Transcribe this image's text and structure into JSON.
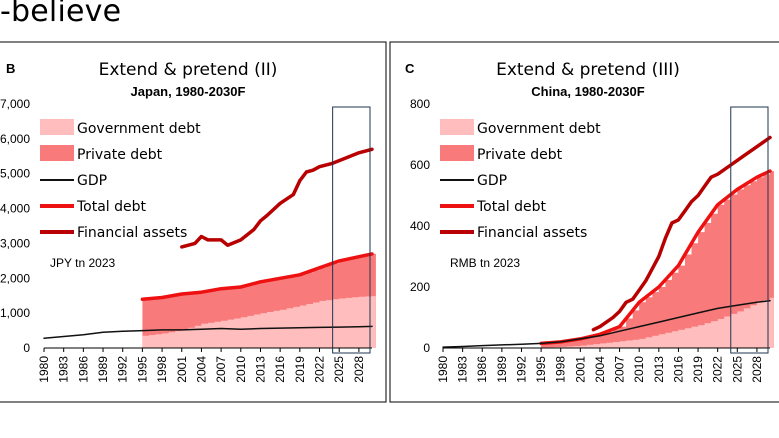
{
  "header": {
    "title": "-believe"
  },
  "chart_data": [
    {
      "type": "area",
      "panel": "B",
      "title": "Extend & pretend (II)",
      "subtitle": "Japan, 1980-2030F",
      "unit": "JPY tn 2023",
      "ylim": [
        0,
        7000
      ],
      "yticks": [
        "0",
        "1,000",
        "2,000",
        "3,000",
        "4,000",
        "5,000",
        "6,000",
        "7,000"
      ],
      "ytick_values": [
        0,
        1000,
        2000,
        3000,
        4000,
        5000,
        6000,
        7000
      ],
      "xticks": [
        "1980",
        "1983",
        "1986",
        "1989",
        "1992",
        "1995",
        "1998",
        "2001",
        "2004",
        "2007",
        "2010",
        "2013",
        "2016",
        "2019",
        "2022",
        "2025",
        "2028"
      ],
      "xlim": [
        1980,
        2030
      ],
      "forecast_box": [
        2024,
        2030
      ],
      "legend": [
        "Government debt",
        "Private debt",
        "GDP",
        "Total debt",
        "Financial assets"
      ],
      "series": [
        {
          "name": "Government debt",
          "years": [
            1995,
            1998,
            2001,
            2004,
            2007,
            2010,
            2013,
            2016,
            2019,
            2022,
            2025,
            2028,
            2030
          ],
          "values": [
            350,
            420,
            520,
            700,
            780,
            880,
            1000,
            1100,
            1220,
            1350,
            1420,
            1470,
            1490
          ]
        },
        {
          "name": "Total debt",
          "years": [
            1995,
            1998,
            2001,
            2004,
            2007,
            2010,
            2013,
            2016,
            2019,
            2022,
            2025,
            2028,
            2030
          ],
          "values": [
            1400,
            1450,
            1550,
            1600,
            1700,
            1750,
            1900,
            2000,
            2100,
            2300,
            2500,
            2620,
            2700
          ]
        },
        {
          "name": "GDP",
          "years": [
            1980,
            1983,
            1986,
            1989,
            1992,
            1995,
            1998,
            2001,
            2004,
            2007,
            2010,
            2013,
            2016,
            2019,
            2022,
            2025,
            2028,
            2030
          ],
          "values": [
            280,
            330,
            380,
            450,
            480,
            500,
            520,
            520,
            540,
            560,
            540,
            560,
            570,
            580,
            590,
            600,
            610,
            620
          ]
        },
        {
          "name": "Financial assets",
          "years": [
            2001,
            2003,
            2004,
            2005,
            2007,
            2008,
            2010,
            2012,
            2013,
            2014,
            2016,
            2018,
            2019,
            2020,
            2021,
            2022,
            2024,
            2026,
            2028,
            2030
          ],
          "values": [
            2900,
            3000,
            3200,
            3100,
            3100,
            2950,
            3100,
            3400,
            3650,
            3800,
            4150,
            4400,
            4800,
            5050,
            5100,
            5200,
            5300,
            5450,
            5600,
            5700
          ]
        }
      ]
    },
    {
      "type": "area",
      "panel": "C",
      "title": "Extend & pretend (III)",
      "subtitle": "China, 1980-2030F",
      "unit": "RMB tn 2023",
      "ylim": [
        0,
        800
      ],
      "yticks": [
        "0",
        "200",
        "400",
        "600",
        "800"
      ],
      "ytick_values": [
        0,
        200,
        400,
        600,
        800
      ],
      "xticks": [
        "1980",
        "1983",
        "1986",
        "1989",
        "1992",
        "1995",
        "1998",
        "2001",
        "2004",
        "2007",
        "2010",
        "2013",
        "2016",
        "2019",
        "2022",
        "2025",
        "2028"
      ],
      "xlim": [
        1980,
        2030
      ],
      "forecast_box": [
        2024,
        2030
      ],
      "legend": [
        "Government debt",
        "Private debt",
        "GDP",
        "Total debt",
        "Financial assets"
      ],
      "series": [
        {
          "name": "Government debt",
          "years": [
            1995,
            1998,
            2001,
            2004,
            2007,
            2010,
            2013,
            2016,
            2019,
            2022,
            2025,
            2028,
            2030
          ],
          "values": [
            2,
            4,
            8,
            15,
            22,
            30,
            45,
            60,
            75,
            95,
            120,
            150,
            165
          ]
        },
        {
          "name": "Total debt",
          "years": [
            1995,
            1998,
            2001,
            2004,
            2007,
            2010,
            2013,
            2016,
            2019,
            2022,
            2025,
            2028,
            2030
          ],
          "values": [
            15,
            20,
            30,
            45,
            70,
            150,
            200,
            270,
            380,
            470,
            520,
            560,
            580
          ]
        },
        {
          "name": "GDP",
          "years": [
            1980,
            1983,
            1986,
            1989,
            1992,
            1995,
            1998,
            2001,
            2004,
            2007,
            2010,
            2013,
            2016,
            2019,
            2022,
            2025,
            2028,
            2030
          ],
          "values": [
            3,
            5,
            8,
            10,
            12,
            15,
            20,
            30,
            40,
            55,
            70,
            85,
            100,
            115,
            130,
            140,
            150,
            155
          ]
        },
        {
          "name": "Financial assets",
          "years": [
            2003,
            2004,
            2006,
            2007,
            2008,
            2009,
            2010,
            2011,
            2012,
            2013,
            2014,
            2015,
            2016,
            2017,
            2018,
            2019,
            2020,
            2021,
            2022,
            2024,
            2026,
            2028,
            2030
          ],
          "values": [
            60,
            70,
            100,
            120,
            150,
            160,
            190,
            220,
            260,
            300,
            360,
            410,
            420,
            450,
            480,
            500,
            530,
            560,
            570,
            600,
            630,
            660,
            690
          ]
        }
      ]
    }
  ]
}
